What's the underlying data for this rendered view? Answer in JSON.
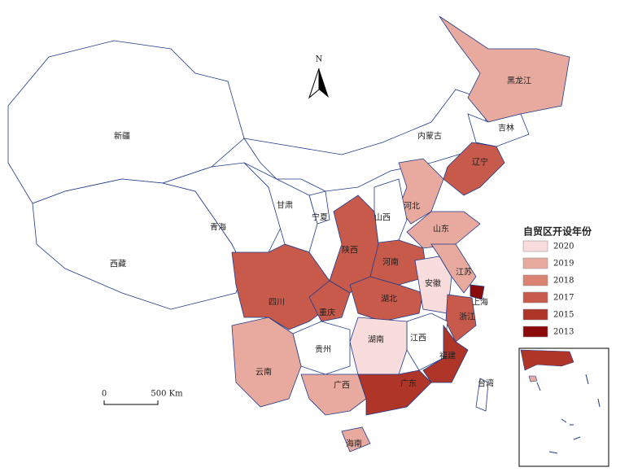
{
  "map": {
    "legend": {
      "title": "自贸区开设年份",
      "items": [
        {
          "year": 2020,
          "color": "#f9dcdc"
        },
        {
          "year": 2019,
          "color": "#e8aa9e"
        },
        {
          "year": 2018,
          "color": "#db8473"
        },
        {
          "year": 2017,
          "color": "#c75a4b"
        },
        {
          "year": 2015,
          "color": "#ae3528"
        },
        {
          "year": 2013,
          "color": "#8b0a0a"
        }
      ]
    },
    "provinces": [
      {
        "name": "新疆",
        "year": null
      },
      {
        "name": "西藏",
        "year": null
      },
      {
        "name": "青海",
        "year": null
      },
      {
        "name": "内蒙古",
        "year": null
      },
      {
        "name": "黑龙江",
        "year": 2019
      },
      {
        "name": "吉林",
        "year": null
      },
      {
        "name": "辽宁",
        "year": 2017
      },
      {
        "name": "河北",
        "year": 2019
      },
      {
        "name": "山西",
        "year": null
      },
      {
        "name": "山东",
        "year": 2019
      },
      {
        "name": "河南",
        "year": 2017
      },
      {
        "name": "陕西",
        "year": 2017
      },
      {
        "name": "宁夏",
        "year": null
      },
      {
        "name": "甘肃",
        "year": null
      },
      {
        "name": "四川",
        "year": 2017
      },
      {
        "name": "重庆",
        "year": 2017
      },
      {
        "name": "湖北",
        "year": 2017
      },
      {
        "name": "安徽",
        "year": 2020
      },
      {
        "name": "江苏",
        "year": 2019
      },
      {
        "name": "上海",
        "year": 2013
      },
      {
        "name": "浙江",
        "year": 2017
      },
      {
        "name": "江西",
        "year": null
      },
      {
        "name": "湖南",
        "year": 2020
      },
      {
        "name": "福建",
        "year": 2015
      },
      {
        "name": "贵州",
        "year": null
      },
      {
        "name": "云南",
        "year": 2019
      },
      {
        "name": "广西",
        "year": 2019
      },
      {
        "name": "广东",
        "year": 2015
      },
      {
        "name": "海南",
        "year": 2019
      },
      {
        "name": "台湾",
        "year": null
      }
    ],
    "north": "N",
    "scale": {
      "start": "0",
      "end": "500 Km"
    }
  }
}
